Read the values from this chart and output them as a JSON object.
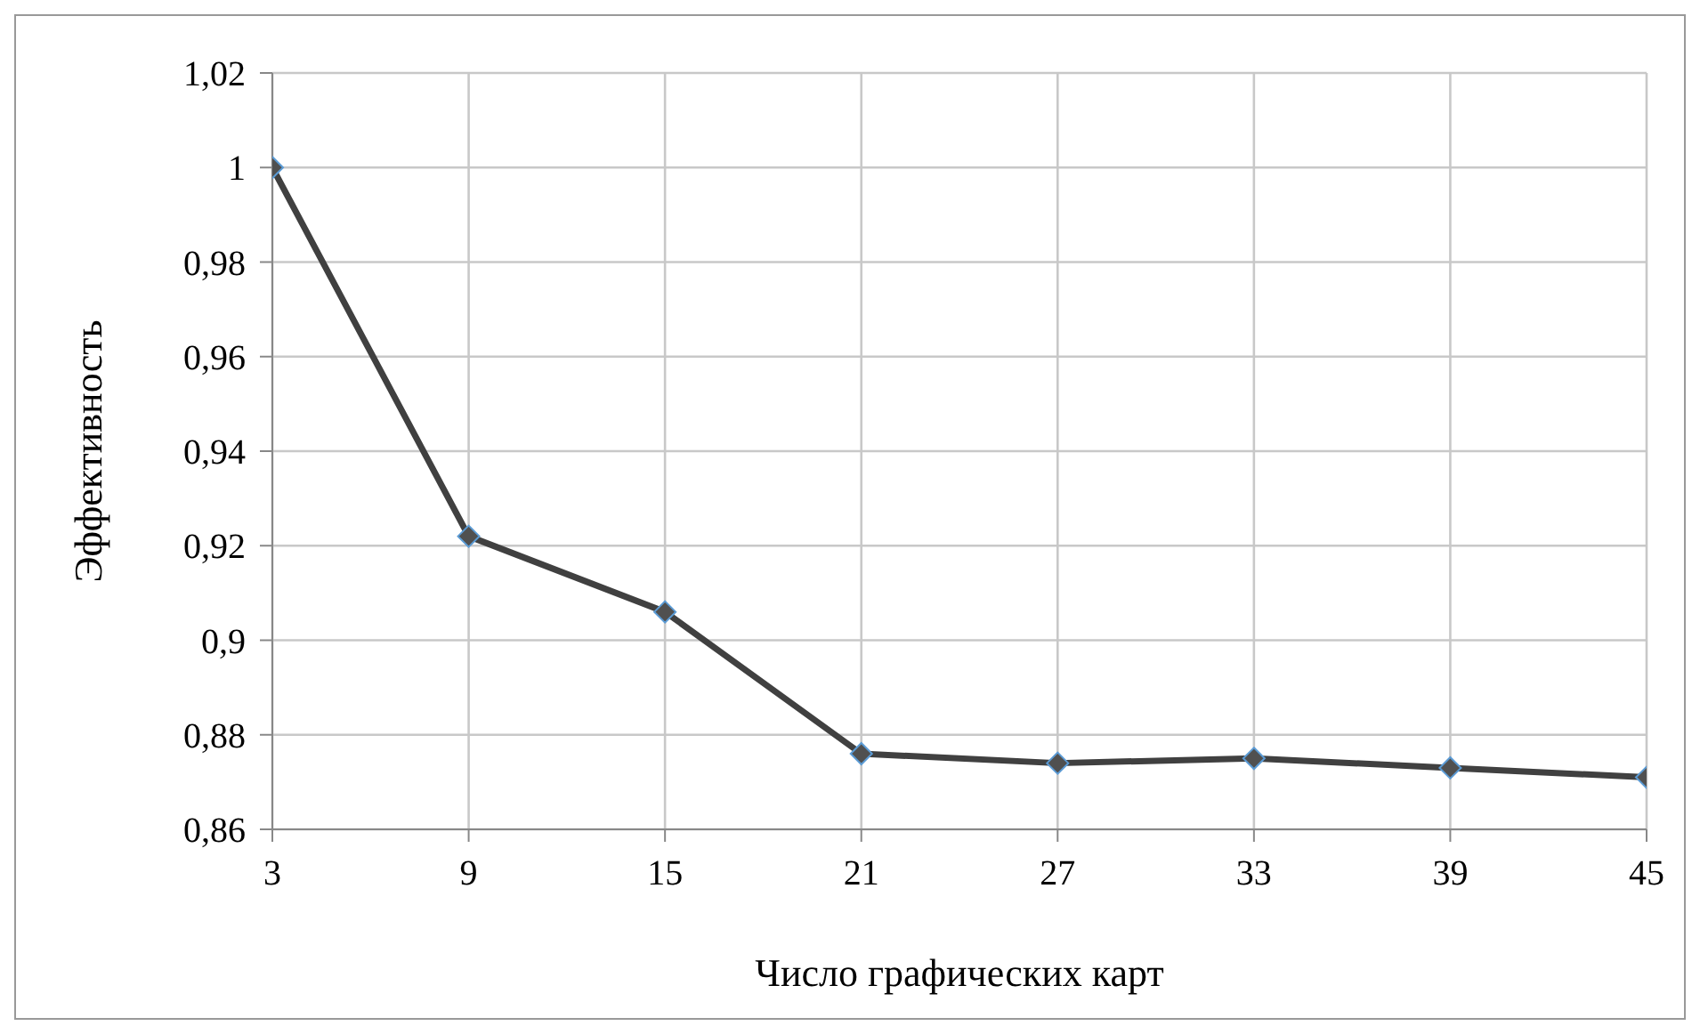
{
  "chart_data": {
    "type": "line",
    "xlabel": "Число графических карт",
    "ylabel": "Эффективность",
    "x": [
      3,
      9,
      15,
      21,
      27,
      33,
      39,
      45
    ],
    "series": [
      {
        "color": "#404040",
        "values": [
          1,
          0.922,
          0.906,
          0.876,
          0.874,
          0.875,
          0.873,
          0.871
        ]
      }
    ],
    "xlim": [
      3,
      45
    ],
    "xticks": [
      3,
      9,
      15,
      21,
      27,
      33,
      39,
      45
    ],
    "ylim": [
      0.86,
      1.02
    ],
    "yticks": [
      {
        "value": 0.86,
        "label": "0,86"
      },
      {
        "value": 0.88,
        "label": "0,88"
      },
      {
        "value": 0.9,
        "label": "0,9"
      },
      {
        "value": 0.92,
        "label": "0,92"
      },
      {
        "value": 0.94,
        "label": "0,94"
      },
      {
        "value": 0.96,
        "label": "0,96"
      },
      {
        "value": 0.98,
        "label": "0,98"
      },
      1,
      {
        "value": 1.02,
        "label": "1,02"
      }
    ],
    "grid": true,
    "legend": false,
    "marker": "diamond",
    "line_style": "solid"
  }
}
